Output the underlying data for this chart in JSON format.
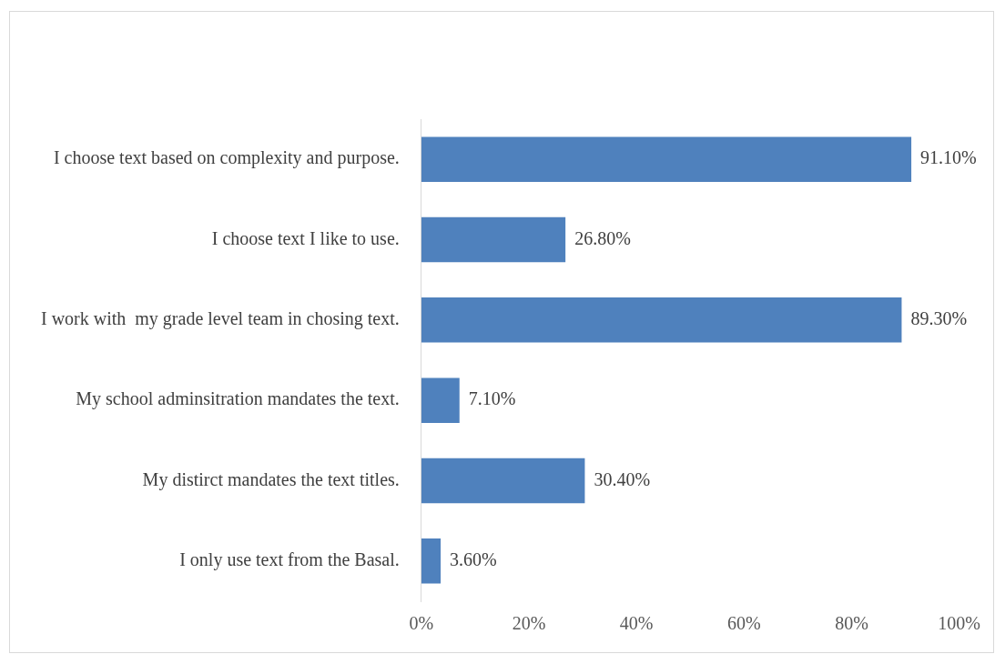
{
  "chart_data": {
    "type": "bar",
    "orientation": "horizontal",
    "categories": [
      "I choose text based on complexity and purpose.",
      "I choose text I like to use.",
      "I work with  my grade level team in chosing text.",
      "My school adminsitration mandates the text.",
      "My distirct mandates the text titles.",
      "I only use text from the Basal."
    ],
    "values": [
      91.1,
      26.8,
      89.3,
      7.1,
      30.4,
      3.6
    ],
    "value_labels": [
      "91.10%",
      "26.80%",
      "89.30%",
      "7.10%",
      "30.40%",
      "3.60%"
    ],
    "color": "#4f81bd",
    "xlim": [
      0,
      100
    ],
    "xticks": [
      {
        "value": 0,
        "label": "0%"
      },
      {
        "value": 20,
        "label": "20%"
      },
      {
        "value": 40,
        "label": "40%"
      },
      {
        "value": 60,
        "label": "60%"
      },
      {
        "value": 80,
        "label": "80%"
      },
      {
        "value": 100,
        "label": "100%"
      }
    ],
    "grid": false,
    "legend": false
  }
}
